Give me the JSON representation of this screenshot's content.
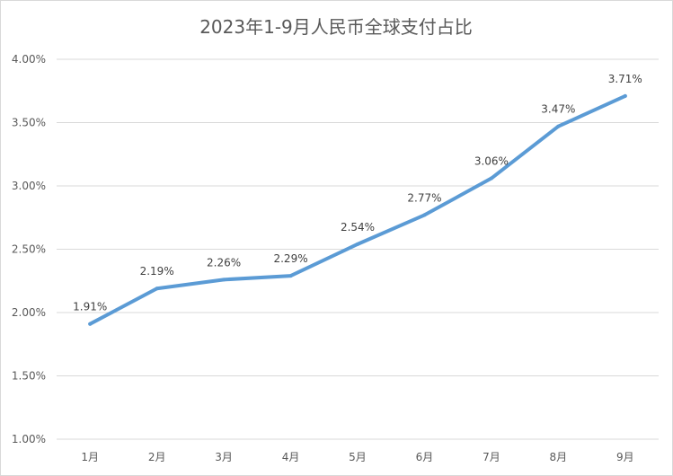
{
  "chart_data": {
    "type": "line",
    "title": "2023年1-9月人民币全球支付占比",
    "xlabel": "",
    "ylabel": "",
    "categories": [
      "1月",
      "2月",
      "3月",
      "4月",
      "5月",
      "6月",
      "7月",
      "8月",
      "9月"
    ],
    "series": [
      {
        "values": [
          1.91,
          2.19,
          2.26,
          2.29,
          2.54,
          2.77,
          3.06,
          3.47,
          3.71
        ],
        "labels": [
          "1.91%",
          "2.19%",
          "2.26%",
          "2.29%",
          "2.54%",
          "2.77%",
          "3.06%",
          "3.47%",
          "3.71%"
        ],
        "color": "#5b9bd5"
      }
    ],
    "ylim": [
      1.0,
      4.0
    ],
    "yticks": [
      "1.00%",
      "1.50%",
      "2.00%",
      "2.50%",
      "3.00%",
      "3.50%",
      "4.00%"
    ],
    "grid": true,
    "legend": "none"
  }
}
